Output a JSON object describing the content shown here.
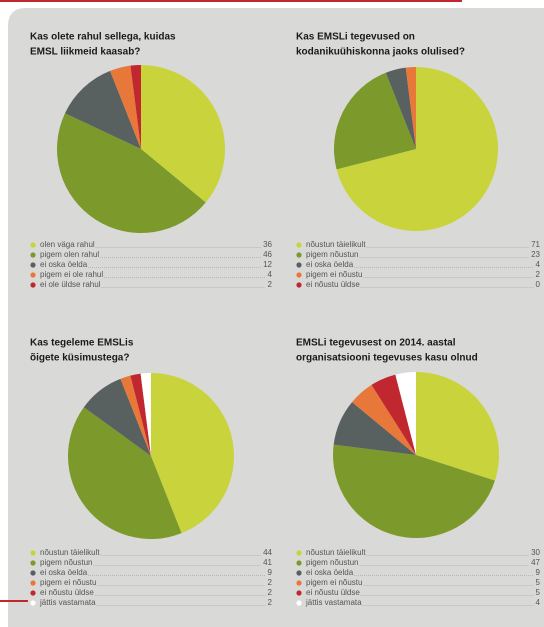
{
  "chart_data": [
    {
      "type": "pie",
      "title": [
        "Kas olete rahul sellega, kuidas",
        "EMSL liikmeid kaasab?"
      ],
      "categories": [
        "olen väga rahul",
        "pigem olen rahul",
        "ei oska öelda",
        "pigem ei ole rahul",
        "ei ole üldse rahul"
      ],
      "values": [
        36,
        46,
        12,
        4,
        2
      ],
      "colors": [
        "#c9d33c",
        "#7b9a2b",
        "#596160",
        "#e8773a",
        "#c1272f"
      ]
    },
    {
      "type": "pie",
      "title": [
        "Kas EMSLi tegevused on",
        "kodanikuühiskonna jaoks olulised?"
      ],
      "categories": [
        "nõustun täielikult",
        "pigem nõustun",
        "ei oska öelda",
        "pigem ei nõustu",
        "ei nõustu üldse"
      ],
      "values": [
        71,
        23,
        4,
        2,
        0
      ],
      "colors": [
        "#c9d33c",
        "#7b9a2b",
        "#596160",
        "#e8773a",
        "#c1272f"
      ]
    },
    {
      "type": "pie",
      "title": [
        "Kas tegeleme EMSLis",
        "õigete küsimustega?"
      ],
      "categories": [
        "nõustun täielikult",
        "pigem nõustun",
        "ei oska öelda",
        "pigem ei nõustu",
        "ei nõustu üldse",
        "jättis vastamata"
      ],
      "values": [
        44,
        41,
        9,
        2,
        2,
        2
      ],
      "colors": [
        "#c9d33c",
        "#7b9a2b",
        "#596160",
        "#e8773a",
        "#c1272f",
        "#ffffff"
      ]
    },
    {
      "type": "pie",
      "title": [
        "EMSLi tegevusest on 2014. aastal",
        "organisatsiooni tegevuses kasu olnud"
      ],
      "categories": [
        "nõustun täielikult",
        "pigem nõustun",
        "ei oska öelda",
        "pigem ei nõustu",
        "ei nõustu üldse",
        "jättis vastamata"
      ],
      "values": [
        30,
        47,
        9,
        5,
        5,
        4
      ],
      "colors": [
        "#c9d33c",
        "#7b9a2b",
        "#596160",
        "#e8773a",
        "#c1272f",
        "#ffffff"
      ]
    }
  ]
}
